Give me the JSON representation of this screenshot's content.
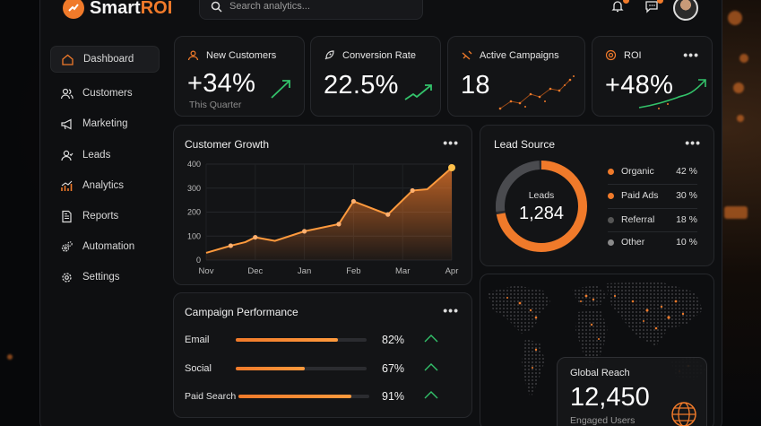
{
  "app": {
    "logo_main": "Smart",
    "logo_accent": "ROI"
  },
  "search": {
    "placeholder": "Search analytics..."
  },
  "sidebar": {
    "items": [
      {
        "label": "Dashboard"
      },
      {
        "label": "Customers"
      },
      {
        "label": "Marketing"
      },
      {
        "label": "Leads"
      },
      {
        "label": "Analytics"
      },
      {
        "label": "Reports"
      },
      {
        "label": "Automation"
      },
      {
        "label": "Settings"
      }
    ]
  },
  "kpis": {
    "new_customers": {
      "title": "New Customers",
      "value": "+34%",
      "sub": "This Quarter"
    },
    "conversion": {
      "title": "Conversion Rate",
      "value": "22.5%"
    },
    "campaigns": {
      "title": "Active Campaigns",
      "value": "18"
    },
    "roi": {
      "title": "ROI",
      "value": "+48%",
      "more": "•••"
    }
  },
  "customer_growth": {
    "title": "Customer Growth",
    "more": "•••"
  },
  "lead_source": {
    "title": "Lead Source",
    "more": "•••",
    "center_label": "Leads",
    "center_value": "1,284",
    "items": [
      {
        "label": "Organic",
        "pct": "42 %",
        "color": "#f07a2a"
      },
      {
        "label": "Paid Ads",
        "pct": "30 %",
        "color": "#f07a2a"
      },
      {
        "label": "Referral",
        "pct": "18 %",
        "color": "#555555"
      },
      {
        "label": "Other",
        "pct": "10 %",
        "color": "#8a8a8a"
      }
    ]
  },
  "campaign_performance": {
    "title_bold": "Campaign",
    "title_rest": " Performance",
    "more": "•••",
    "rows": [
      {
        "label": "Email",
        "value": "82%",
        "fraction": 0.78
      },
      {
        "label": "Social",
        "value": "67%",
        "fraction": 0.53
      },
      {
        "label": "Paid Search",
        "value": "91%",
        "fraction": 0.86
      }
    ]
  },
  "global_reach": {
    "title": "Global Reach",
    "value": "12,450",
    "sub": "Engaged Users"
  },
  "chart_data": {
    "type": "area",
    "title": "Customer Growth",
    "categories": [
      "Nov",
      "Dec",
      "Jan",
      "Feb",
      "Mar",
      "Apr"
    ],
    "x": [
      0,
      0.5,
      0.8,
      1.0,
      1.4,
      2.0,
      2.7,
      3.0,
      3.7,
      4.2,
      4.5,
      5.0
    ],
    "y": [
      30,
      60,
      75,
      95,
      80,
      120,
      150,
      245,
      190,
      290,
      295,
      385
    ],
    "markers": [
      0.5,
      1.0,
      2.0,
      2.7,
      3.0,
      3.7,
      4.2,
      5.0
    ],
    "ylim": [
      0,
      400
    ],
    "yticks": [
      0,
      100,
      200,
      300,
      400
    ],
    "xlabel": "",
    "ylabel": "",
    "grid": true
  }
}
